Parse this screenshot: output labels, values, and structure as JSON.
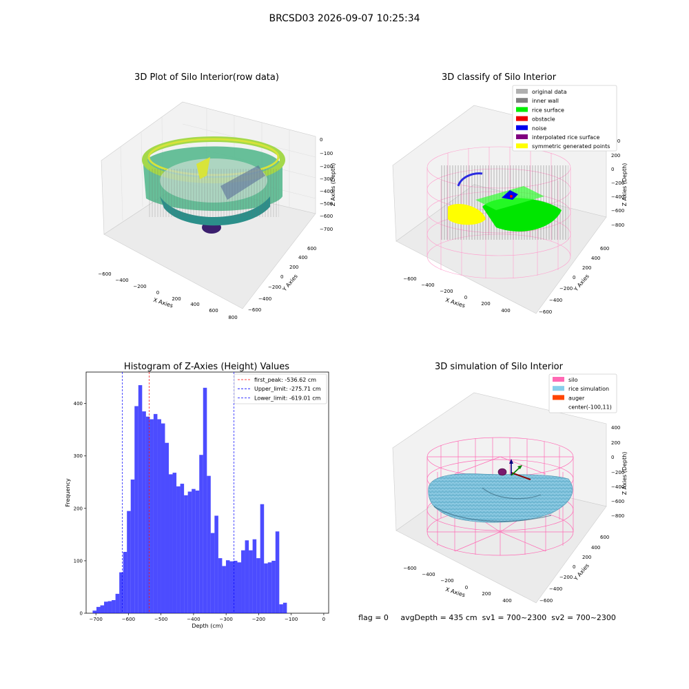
{
  "figure": {
    "suptitle": "BRCSD03 2026-09-07 10:25:34",
    "status_line": "flag = 0     avgDepth = 435 cm  sv1 = 700~2300  sv2 = 700~2300"
  },
  "chart_data": [
    {
      "type": "scatter",
      "panel": "raw",
      "title": "3D Plot of Silo Interior(row data)",
      "xlabel": "X Axies",
      "ylabel": "Y Axies",
      "zlabel": "Z Axies (Depth)",
      "xticks": [
        "−600",
        "−400",
        "−200",
        "0",
        "200",
        "400",
        "600",
        "800"
      ],
      "yticks": [
        "−600",
        "−400",
        "−200",
        "0",
        "200",
        "400",
        "600"
      ],
      "zticks": [
        "0",
        "−100",
        "−200",
        "−300",
        "−400",
        "−500",
        "−600",
        "−700"
      ],
      "colormap": "viridis"
    },
    {
      "type": "scatter",
      "panel": "classify",
      "title": "3D classify of Silo Interior",
      "xlabel": "X Axies",
      "ylabel": "Y Axies",
      "zlabel": "Z Axies (Depth)",
      "xticks": [
        "−600",
        "−400",
        "−200",
        "0",
        "200",
        "400"
      ],
      "yticks": [
        "−600",
        "−400",
        "−200",
        "0",
        "200",
        "400",
        "600"
      ],
      "zticks": [
        "200",
        "0",
        "−200",
        "−400",
        "−600",
        "−800"
      ],
      "z_top_label": "400",
      "legend": [
        {
          "label": "original data",
          "color": "#b0b0b0"
        },
        {
          "label": "inner wall",
          "color": "#808080"
        },
        {
          "label": "rice surface",
          "color": "#00ee00"
        },
        {
          "label": "obstacle",
          "color": "#ee0000"
        },
        {
          "label": "noise",
          "color": "#0000ee"
        },
        {
          "label": "interpolated rice surface",
          "color": "#800080"
        },
        {
          "label": "symmetric generated points",
          "color": "#ffff00"
        }
      ]
    },
    {
      "type": "bar",
      "panel": "histogram",
      "title": "Histogram of Z-Axies (Height) Values",
      "xlabel": "Depth (cm)",
      "ylabel": "Frequency",
      "xlim": [
        -730,
        15
      ],
      "ylim": [
        0,
        460
      ],
      "xticks": [
        -700,
        -600,
        -500,
        -400,
        -300,
        -200,
        -100,
        0
      ],
      "xtick_labels": [
        "−700",
        "−600",
        "−500",
        "−400",
        "−300",
        "−200",
        "−100",
        "0"
      ],
      "yticks": [
        0,
        100,
        200,
        300,
        400
      ],
      "bin_start": -710,
      "bin_width": 11.7,
      "values": [
        5,
        12,
        15,
        22,
        23,
        25,
        37,
        78,
        117,
        195,
        255,
        395,
        435,
        385,
        375,
        370,
        380,
        370,
        362,
        325,
        265,
        268,
        242,
        247,
        225,
        232,
        237,
        234,
        302,
        430,
        262,
        153,
        186,
        105,
        90,
        101,
        99,
        100,
        97,
        120,
        139,
        120,
        141,
        105,
        208,
        95,
        97,
        100,
        156,
        17,
        20
      ],
      "bar_color": "#0000ff",
      "lines": [
        {
          "label": "first_peak: -536.62 cm",
          "x": -536.62,
          "color": "#ff0000"
        },
        {
          "label": "Upper_limit: -275.71 cm",
          "x": -275.71,
          "color": "#0000ff"
        },
        {
          "label": "Lower_limit: -619.01 cm",
          "x": -619.01,
          "color": "#0000ff"
        }
      ],
      "legend_position": "top-right"
    },
    {
      "type": "surface",
      "panel": "simulation",
      "title": "3D simulation of Silo Interior",
      "xlabel": "X Axies",
      "ylabel": "Y Axies",
      "zlabel": "Z Axies (Depth)",
      "xticks": [
        "−600",
        "−400",
        "−200",
        "0",
        "200",
        "400"
      ],
      "yticks": [
        "−600",
        "−400",
        "−200",
        "0",
        "200",
        "400",
        "600"
      ],
      "zticks": [
        "400",
        "200",
        "0",
        "−200",
        "−400",
        "−600",
        "−800"
      ],
      "legend": [
        {
          "label": "silo",
          "color": "#ff69b4"
        },
        {
          "label": "rice simulation",
          "color": "#87ceeb"
        },
        {
          "label": "auger",
          "color": "#ff4500"
        },
        {
          "label": "center(-100,11)",
          "color": "none"
        }
      ]
    }
  ]
}
